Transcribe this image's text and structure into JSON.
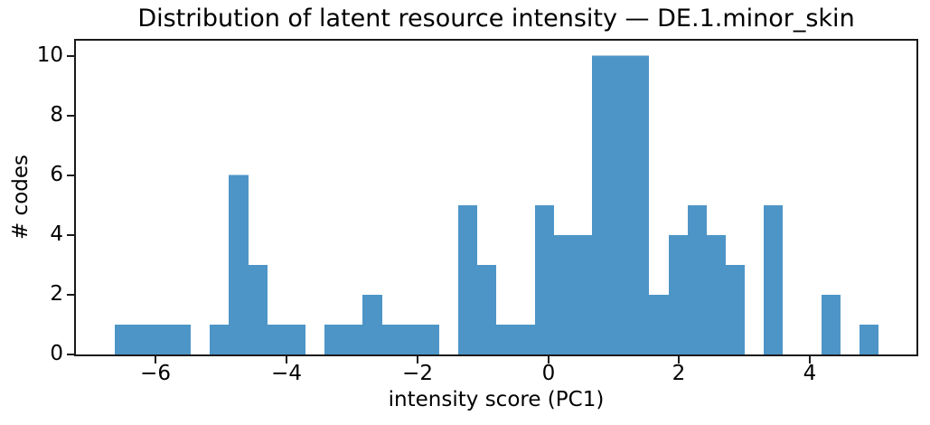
{
  "chart_data": {
    "type": "bar",
    "subtype": "histogram",
    "title": "Distribution of latent resource intensity — DE.1.minor_skin",
    "xlabel": "intensity score (PC1)",
    "ylabel": "# codes",
    "bin_start": -6.63,
    "bin_width": 0.292,
    "num_bins": 40,
    "counts": [
      1,
      1,
      1,
      1,
      0,
      1,
      6,
      3,
      1,
      1,
      0,
      1,
      1,
      2,
      1,
      1,
      1,
      0,
      5,
      3,
      1,
      1,
      5,
      4,
      4,
      10,
      10,
      10,
      2,
      4,
      5,
      4,
      3,
      0,
      5,
      0,
      0,
      2,
      0,
      1
    ],
    "total_count": 102,
    "xlim": [
      -7.22,
      5.63
    ],
    "ylim": [
      0,
      10.5
    ],
    "xticks": [
      -6,
      -4,
      -2,
      0,
      2,
      4
    ],
    "yticks": [
      0,
      2,
      4,
      6,
      8,
      10
    ],
    "bar_color": "#4d95c7",
    "spine_color": "#1a1a1a",
    "text_color": "#000000",
    "grid": false,
    "legend": null
  }
}
